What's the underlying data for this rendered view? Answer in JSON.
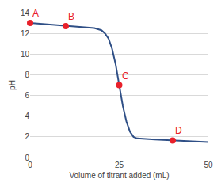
{
  "chart_data": {
    "type": "line",
    "x": [
      0,
      5,
      10,
      15,
      18,
      20,
      21,
      22,
      23,
      24,
      25,
      26,
      27,
      28,
      29,
      30,
      35,
      40,
      45,
      50
    ],
    "values": [
      13.0,
      12.85,
      12.7,
      12.6,
      12.5,
      12.3,
      12.0,
      11.5,
      10.5,
      9.0,
      7.0,
      5.0,
      3.5,
      2.5,
      2.0,
      1.85,
      1.75,
      1.65,
      1.6,
      1.5
    ],
    "color": "#2f4f86",
    "x_label": "Volume of titrant added (mL)",
    "y_label": "pH",
    "xlim": [
      0,
      50
    ],
    "xticks": [
      0,
      25,
      50
    ],
    "ylim": [
      0,
      14
    ],
    "yticks": [
      0,
      2,
      4,
      6,
      8,
      10,
      12,
      14
    ],
    "grid": true,
    "annotations": [
      {
        "text": "A",
        "x": 0,
        "y": 13.0,
        "color": "#e8202a"
      },
      {
        "text": "B",
        "x": 10,
        "y": 12.7,
        "color": "#e8202a"
      },
      {
        "text": "C",
        "x": 25,
        "y": 7.0,
        "color": "#e8202a"
      },
      {
        "text": "D",
        "x": 40,
        "y": 1.65,
        "color": "#e8202a"
      }
    ]
  }
}
